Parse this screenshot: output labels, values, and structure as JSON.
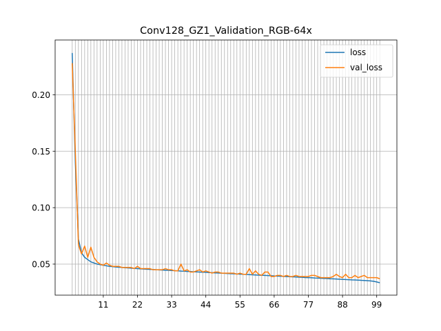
{
  "chart_data": {
    "type": "line",
    "title": "Conv128_GZ1_Validation_RGB-64x",
    "xlabel": "",
    "ylabel": "",
    "x": [
      1,
      2,
      3,
      4,
      5,
      6,
      7,
      8,
      9,
      10,
      11,
      12,
      13,
      14,
      15,
      16,
      17,
      18,
      19,
      20,
      21,
      22,
      23,
      24,
      25,
      26,
      27,
      28,
      29,
      30,
      31,
      32,
      33,
      34,
      35,
      36,
      37,
      38,
      39,
      40,
      41,
      42,
      43,
      44,
      45,
      46,
      47,
      48,
      49,
      50,
      51,
      52,
      53,
      54,
      55,
      56,
      57,
      58,
      59,
      60,
      61,
      62,
      63,
      64,
      65,
      66,
      67,
      68,
      69,
      70,
      71,
      72,
      73,
      74,
      75,
      76,
      77,
      78,
      79,
      80,
      81,
      82,
      83,
      84,
      85,
      86,
      87,
      88,
      89,
      90,
      91,
      92,
      93,
      94,
      95,
      96,
      97,
      98,
      99,
      100
    ],
    "xticks": [
      11,
      22,
      33,
      44,
      55,
      66,
      77,
      88,
      99
    ],
    "yticks": [
      0.05,
      0.1,
      0.15,
      0.2
    ],
    "xlim": [
      -4.5,
      105.5
    ],
    "ylim": [
      0.0225,
      0.2485
    ],
    "grid": "x-every-epoch,y-major",
    "legend_position": "top-right",
    "colors": {
      "loss": "#1f77b4",
      "val_loss": "#ff7f0e"
    },
    "series": [
      {
        "name": "loss",
        "values": [
          0.237,
          0.14,
          0.072,
          0.06,
          0.056,
          0.054,
          0.052,
          0.051,
          0.05,
          0.0495,
          0.049,
          0.0485,
          0.048,
          0.0478,
          0.0475,
          0.0472,
          0.047,
          0.0468,
          0.0466,
          0.0464,
          0.0462,
          0.046,
          0.0458,
          0.0456,
          0.0455,
          0.0453,
          0.0452,
          0.045,
          0.0449,
          0.0447,
          0.0446,
          0.0445,
          0.0443,
          0.0442,
          0.044,
          0.0438,
          0.0437,
          0.0435,
          0.0434,
          0.0432,
          0.0431,
          0.043,
          0.0428,
          0.0427,
          0.0425,
          0.0424,
          0.0422,
          0.0421,
          0.042,
          0.0418,
          0.0417,
          0.0415,
          0.0414,
          0.0413,
          0.0411,
          0.041,
          0.0408,
          0.0407,
          0.0405,
          0.0404,
          0.0402,
          0.0401,
          0.04,
          0.0398,
          0.0397,
          0.0395,
          0.0394,
          0.0393,
          0.0391,
          0.039,
          0.0388,
          0.0387,
          0.0386,
          0.0384,
          0.0383,
          0.0381,
          0.038,
          0.0379,
          0.0377,
          0.0376,
          0.0375,
          0.0373,
          0.0372,
          0.037,
          0.0369,
          0.0368,
          0.0366,
          0.0365,
          0.0363,
          0.0362,
          0.036,
          0.0359,
          0.0358,
          0.0356,
          0.0355,
          0.0353,
          0.0351,
          0.0348,
          0.0342,
          0.0335
        ]
      },
      {
        "name": "val_loss",
        "values": [
          0.228,
          0.15,
          0.067,
          0.059,
          0.066,
          0.056,
          0.065,
          0.056,
          0.052,
          0.05,
          0.049,
          0.051,
          0.049,
          0.048,
          0.048,
          0.048,
          0.047,
          0.047,
          0.047,
          0.047,
          0.046,
          0.048,
          0.046,
          0.046,
          0.046,
          0.046,
          0.045,
          0.045,
          0.045,
          0.045,
          0.046,
          0.045,
          0.045,
          0.044,
          0.044,
          0.05,
          0.044,
          0.045,
          0.043,
          0.043,
          0.044,
          0.045,
          0.043,
          0.044,
          0.043,
          0.042,
          0.043,
          0.043,
          0.042,
          0.042,
          0.042,
          0.042,
          0.042,
          0.041,
          0.042,
          0.041,
          0.041,
          0.046,
          0.041,
          0.044,
          0.041,
          0.04,
          0.043,
          0.043,
          0.039,
          0.039,
          0.04,
          0.04,
          0.039,
          0.04,
          0.039,
          0.039,
          0.04,
          0.039,
          0.039,
          0.039,
          0.039,
          0.04,
          0.04,
          0.039,
          0.038,
          0.038,
          0.038,
          0.038,
          0.039,
          0.041,
          0.039,
          0.038,
          0.041,
          0.038,
          0.038,
          0.04,
          0.038,
          0.039,
          0.04,
          0.038,
          0.038,
          0.038,
          0.038,
          0.037
        ]
      }
    ]
  }
}
